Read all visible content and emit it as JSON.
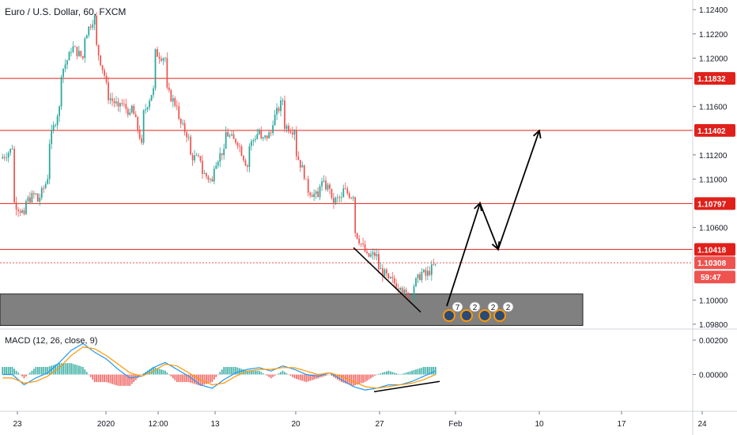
{
  "header": {
    "title": "Euro / U.S. Dollar, 60, FXCM"
  },
  "macd": {
    "label": "MACD (12, 26, close, 9)",
    "tick_labels": [
      "0.00200",
      "0.00000"
    ],
    "ticks": [
      0.002,
      0.0
    ]
  },
  "colors": {
    "up": "#26a69a",
    "down": "#ef5350",
    "level_line": "#e0201a",
    "level_badge": "#e0201a",
    "last_price_badge": "#ef5350",
    "zone_fill": "#808080",
    "macd_line": "#2196f3",
    "signal_line": "#ff9800",
    "event_ring": "#ff9800",
    "event_fill": "#2a4a78"
  },
  "events": [
    {
      "label": "7"
    },
    {
      "label": "2"
    },
    {
      "label": "2"
    },
    {
      "label": "2"
    }
  ],
  "chart_data": {
    "type": "candlestick",
    "symbol": "EURUSD",
    "timeframe": "60",
    "source": "FXCM",
    "ylim": [
      1.0978,
      1.1248
    ],
    "y_tick_labels": [
      "1.12400",
      "1.12200",
      "1.12000",
      "1.11600",
      "1.11200",
      "1.11000",
      "1.10600",
      "1.10000",
      "1.09800"
    ],
    "y_ticks": [
      1.124,
      1.122,
      1.12,
      1.116,
      1.112,
      1.11,
      1.106,
      1.1,
      1.098
    ],
    "x_tick_labels": [
      "23",
      "2020",
      "12:00",
      "13",
      "20",
      "27",
      "Feb",
      "10",
      "17",
      "24"
    ],
    "levels": [
      {
        "label": "1.11832",
        "value": 1.11832
      },
      {
        "label": "1.11402",
        "value": 1.11402
      },
      {
        "label": "1.10797",
        "value": 1.10797
      },
      {
        "label": "1.10418",
        "value": 1.10418
      }
    ],
    "last_price": {
      "label": "1.10308",
      "value": 1.10308,
      "countdown": "59:47"
    },
    "zone": {
      "from": 1.0979,
      "to": 1.1005
    },
    "price_path": [
      [
        1.1117,
        1.1125
      ],
      [
        1.1082,
        1.1071
      ],
      [
        1.108,
        1.1088
      ],
      [
        1.1078,
        1.11
      ],
      [
        1.1125,
        1.116
      ],
      [
        1.1185,
        1.1205
      ],
      [
        1.121,
        1.12
      ],
      [
        1.1215,
        1.1235
      ],
      [
        1.1215,
        1.118
      ],
      [
        1.117,
        1.116
      ],
      [
        1.1165,
        1.1155
      ],
      [
        1.1165,
        1.113
      ],
      [
        1.115,
        1.1175
      ],
      [
        1.1205,
        1.12
      ],
      [
        1.1175,
        1.116
      ],
      [
        1.115,
        1.1135
      ],
      [
        1.112,
        1.1115
      ],
      [
        1.1107,
        1.1098
      ],
      [
        1.111,
        1.1125
      ],
      [
        1.114,
        1.113
      ],
      [
        1.1135,
        1.111
      ],
      [
        1.1125,
        1.114
      ],
      [
        1.113,
        1.1138
      ],
      [
        1.1145,
        1.1165
      ],
      [
        1.1145,
        1.114
      ],
      [
        1.1125,
        1.11
      ],
      [
        1.1092,
        1.1085
      ],
      [
        1.1098,
        1.1092
      ],
      [
        1.108,
        1.1085
      ],
      [
        1.1092,
        1.1085
      ],
      [
        1.106,
        1.104
      ],
      [
        1.1035,
        1.1038
      ],
      [
        1.1028,
        1.1018
      ],
      [
        1.1018,
        1.101
      ],
      [
        1.1008,
        1.1
      ],
      [
        1.101,
        1.1025
      ],
      [
        1.1018,
        1.103
      ]
    ],
    "macd_path": [
      [
        0.0,
        -0.0002
      ],
      [
        -0.0006,
        -0.0005
      ],
      [
        -0.0002,
        -0.0004
      ],
      [
        0.0001,
        -0.0001
      ],
      [
        0.0007,
        0.0004
      ],
      [
        0.0014,
        0.0011
      ],
      [
        0.0018,
        0.0016
      ],
      [
        0.0013,
        0.0015
      ],
      [
        0.0009,
        0.0011
      ],
      [
        0.0003,
        0.0006
      ],
      [
        -0.0002,
        0.0001
      ],
      [
        -0.0001,
        -0.0001
      ],
      [
        0.0004,
        0.0002
      ],
      [
        0.0007,
        0.0006
      ],
      [
        0.0003,
        0.0005
      ],
      [
        -0.0001,
        0.0001
      ],
      [
        -0.0006,
        -0.0003
      ],
      [
        -0.0008,
        -0.0006
      ],
      [
        -0.0003,
        -0.0005
      ],
      [
        0.0001,
        -0.0001
      ],
      [
        0.0003,
        0.0002
      ],
      [
        0.0004,
        0.0003
      ],
      [
        0.0002,
        0.0003
      ],
      [
        0.0005,
        0.0004
      ],
      [
        0.0003,
        0.0004
      ],
      [
        0.0,
        0.0002
      ],
      [
        -0.0001,
        0.0
      ],
      [
        0.0001,
        0.0001
      ],
      [
        -0.0003,
        -0.0001
      ],
      [
        -0.0007,
        -0.0004
      ],
      [
        -0.0009,
        -0.0007
      ],
      [
        -0.0008,
        -0.0008
      ],
      [
        -0.0006,
        -0.0007
      ],
      [
        -0.0006,
        -0.0006
      ],
      [
        -0.0004,
        -0.0005
      ],
      [
        -0.0001,
        -0.0003
      ],
      [
        0.0002,
        0.0
      ]
    ],
    "projection_arrow": [
      [
        1.0995,
        1.108
      ],
      [
        1.108,
        1.1042
      ],
      [
        1.1042,
        1.114
      ]
    ],
    "divergence_lines": {
      "price": [
        1.1042,
        1.099
      ],
      "macd": [
        -0.001,
        -0.0004
      ]
    }
  }
}
